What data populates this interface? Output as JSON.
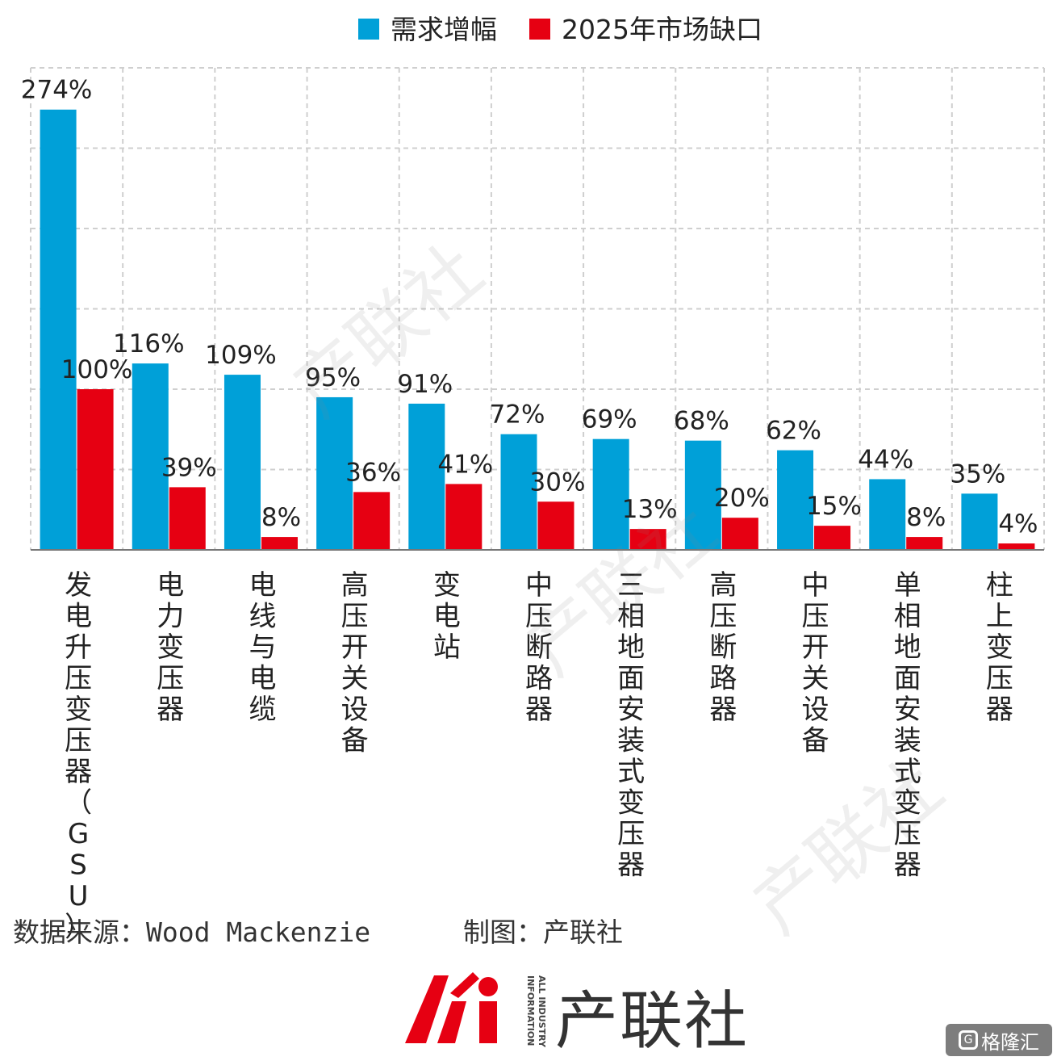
{
  "chart_data": {
    "type": "bar",
    "title": "",
    "xlabel": "",
    "ylabel": "",
    "ylim": [
      0,
      300
    ],
    "grid": true,
    "legend_position": "top-center",
    "categories": [
      "发电升压变压器（GSU）",
      "电力变压器",
      "电线与电缆",
      "高压开关设备",
      "变电站",
      "中压断路器",
      "三相地面安装式变压器",
      "高压断路器",
      "中压开关设备",
      "单相地面安装式变压器",
      "柱上变压器"
    ],
    "series": [
      {
        "name": "需求增幅",
        "color": "#00A0D8",
        "values": [
          274,
          116,
          109,
          95,
          91,
          72,
          69,
          68,
          62,
          44,
          35
        ],
        "labels": [
          "274%",
          "116%",
          "109%",
          "95%",
          "91%",
          "72%",
          "69%",
          "68%",
          "62%",
          "44%",
          "35%"
        ]
      },
      {
        "name": "2025年市场缺口",
        "color": "#E60012",
        "values": [
          100,
          39,
          8,
          36,
          41,
          30,
          13,
          20,
          15,
          8,
          4
        ],
        "labels": [
          "100%",
          "39%",
          "8%",
          "36%",
          "41%",
          "30%",
          "13%",
          "20%",
          "15%",
          "8%",
          "4%"
        ]
      }
    ]
  },
  "footer": {
    "source": "数据来源：Wood Mackenzie",
    "credit": "制图：产联社"
  },
  "brand": {
    "logo_icon": "ai-logo-icon",
    "name": "产联社",
    "sub": "ALL INDUSTRY INFORMATION"
  },
  "corner_badge": {
    "icon": "gelonghui-logo-icon",
    "text": "格隆汇"
  }
}
